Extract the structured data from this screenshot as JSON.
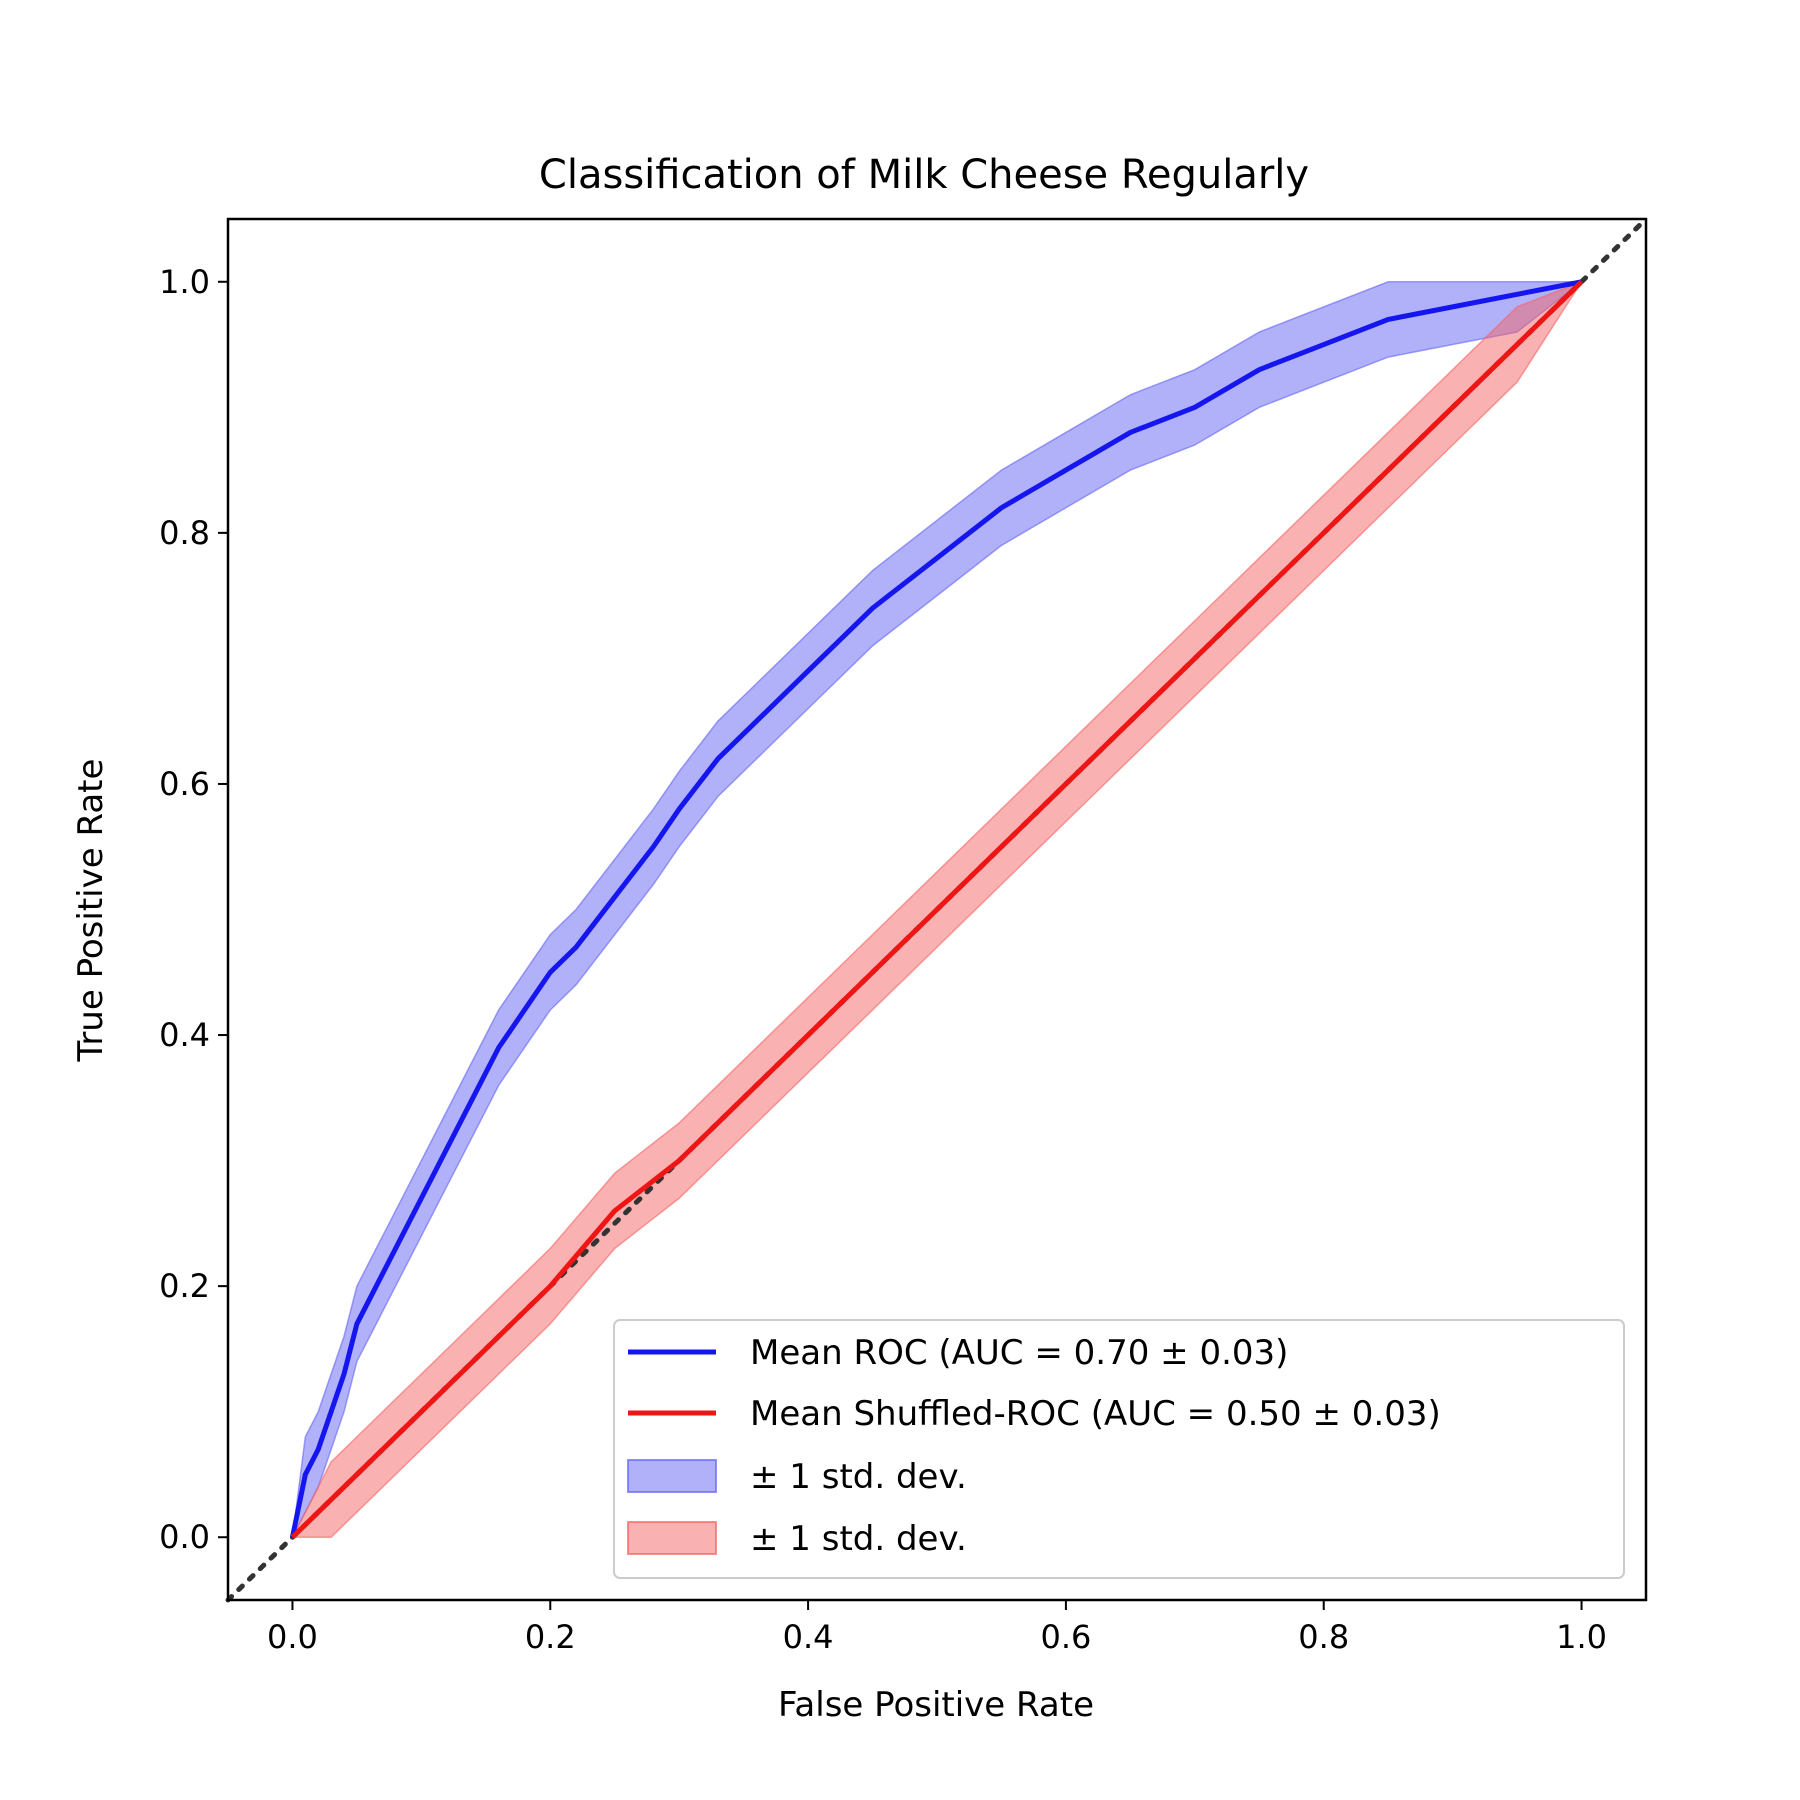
{
  "chart_data": {
    "type": "line",
    "title": "Classification of Milk Cheese Regularly",
    "xlabel": "False Positive Rate",
    "ylabel": "True Positive Rate",
    "xlim": [
      -0.05,
      1.05
    ],
    "ylim": [
      -0.05,
      1.05
    ],
    "xticks": [
      "0.0",
      "0.2",
      "0.4",
      "0.6",
      "0.8",
      "1.0"
    ],
    "yticks": [
      "0.0",
      "0.2",
      "0.4",
      "0.6",
      "0.8",
      "1.0"
    ],
    "grid": false,
    "legend_position": "lower-right",
    "diagonal": {
      "style": "dotted",
      "color": "#333333",
      "x": [
        -0.05,
        1.05
      ],
      "y": [
        -0.05,
        1.05
      ]
    },
    "series": [
      {
        "name": "Mean ROC (AUC = 0.70 ± 0.03)",
        "color": "#1515f0",
        "x": [
          0.0,
          0.01,
          0.02,
          0.03,
          0.04,
          0.05,
          0.06,
          0.08,
          0.1,
          0.12,
          0.14,
          0.16,
          0.18,
          0.2,
          0.22,
          0.25,
          0.28,
          0.3,
          0.33,
          0.36,
          0.4,
          0.45,
          0.5,
          0.55,
          0.6,
          0.65,
          0.7,
          0.75,
          0.8,
          0.85,
          0.9,
          0.95,
          1.0
        ],
        "y": [
          0.0,
          0.05,
          0.07,
          0.1,
          0.13,
          0.17,
          0.19,
          0.23,
          0.27,
          0.31,
          0.35,
          0.39,
          0.42,
          0.45,
          0.47,
          0.51,
          0.55,
          0.58,
          0.62,
          0.65,
          0.69,
          0.74,
          0.78,
          0.82,
          0.85,
          0.88,
          0.9,
          0.93,
          0.95,
          0.97,
          0.98,
          0.99,
          1.0
        ],
        "std": 0.03
      },
      {
        "name": "Mean Shuffled-ROC (AUC = 0.50 ± 0.03)",
        "color": "#f01515",
        "x": [
          0.0,
          0.03,
          0.06,
          0.1,
          0.15,
          0.2,
          0.25,
          0.3,
          0.35,
          0.4,
          0.45,
          0.5,
          0.55,
          0.6,
          0.65,
          0.7,
          0.75,
          0.8,
          0.85,
          0.9,
          0.95,
          1.0
        ],
        "y": [
          0.0,
          0.03,
          0.06,
          0.1,
          0.15,
          0.2,
          0.26,
          0.3,
          0.35,
          0.4,
          0.45,
          0.5,
          0.55,
          0.6,
          0.65,
          0.7,
          0.75,
          0.8,
          0.85,
          0.9,
          0.95,
          1.0
        ],
        "std": 0.03
      }
    ],
    "bands": [
      {
        "name": "± 1 std. dev.",
        "color": "#6464f5"
      },
      {
        "name": "± 1 std. dev.",
        "color": "#f56464"
      }
    ]
  }
}
